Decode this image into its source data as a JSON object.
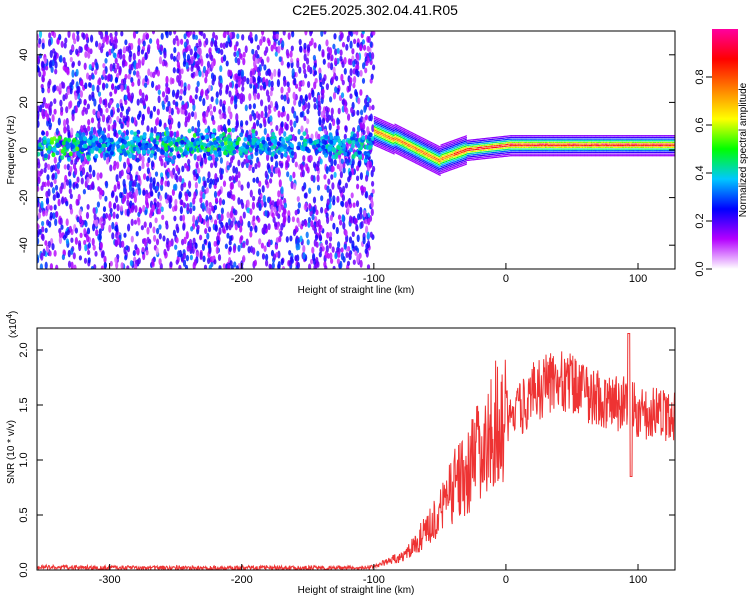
{
  "title": "C2E5.2025.302.04.41.R05",
  "chart_data": [
    {
      "type": "heatmap",
      "xlabel": "Height of straight line (km)",
      "ylabel": "Frequency (Hz)",
      "xlim": [
        -355,
        128
      ],
      "ylim": [
        -50,
        50
      ],
      "xticks": [
        -300,
        -200,
        -100,
        0,
        100
      ],
      "xtick_labels": [
        "-300",
        "-200",
        "-100",
        "0",
        "100"
      ],
      "yticks": [
        -40,
        -20,
        0,
        20,
        40
      ],
      "ytick_labels": [
        "-40",
        "-20",
        "0",
        "20",
        "40"
      ],
      "colorbar": {
        "label": "Normalized spectral amplitude",
        "range": [
          0,
          1
        ],
        "ticks": [
          0,
          0.2,
          0.4,
          0.6,
          0.8
        ],
        "tick_labels": [
          "0.0",
          "0.2",
          "0.4",
          "0.6",
          "0.8"
        ],
        "colors": [
          "#ffffff",
          "#b400ff",
          "#0000ff",
          "#00c8ff",
          "#00ff00",
          "#ffff00",
          "#ff8000",
          "#ff0000",
          "#ff00a0"
        ]
      }
    },
    {
      "type": "line",
      "xlabel": "Height of straight line (km)",
      "ylabel": "SNR (10 * v/v)",
      "y_multiplier": "(x10",
      "y_multiplier_exp": "4",
      "y_multiplier_close": ")",
      "xlim": [
        -355,
        128
      ],
      "ylim": [
        0,
        2.2
      ],
      "xticks": [
        -300,
        -200,
        -100,
        0,
        100
      ],
      "xtick_labels": [
        "-300",
        "-200",
        "-100",
        "0",
        "100"
      ],
      "yticks": [
        0,
        0.5,
        1.0,
        1.5,
        2.0
      ],
      "ytick_labels": [
        "0.0",
        "0.5",
        "1.0",
        "1.5",
        "2.0"
      ],
      "color": "#ee3333",
      "trend": {
        "x": [
          -355,
          -300,
          -250,
          -200,
          -150,
          -110,
          -100,
          -80,
          -60,
          -50,
          -40,
          -30,
          -20,
          -10,
          0,
          10,
          20,
          30,
          40,
          50,
          60,
          70,
          80,
          90,
          100,
          110,
          128
        ],
        "y": [
          0.03,
          0.02,
          0.02,
          0.02,
          0.02,
          0.02,
          0.03,
          0.12,
          0.35,
          0.5,
          0.75,
          0.85,
          1.1,
          1.3,
          1.4,
          1.45,
          1.6,
          1.7,
          1.75,
          1.7,
          1.6,
          1.55,
          1.5,
          1.5,
          1.45,
          1.42,
          1.4
        ]
      }
    }
  ]
}
